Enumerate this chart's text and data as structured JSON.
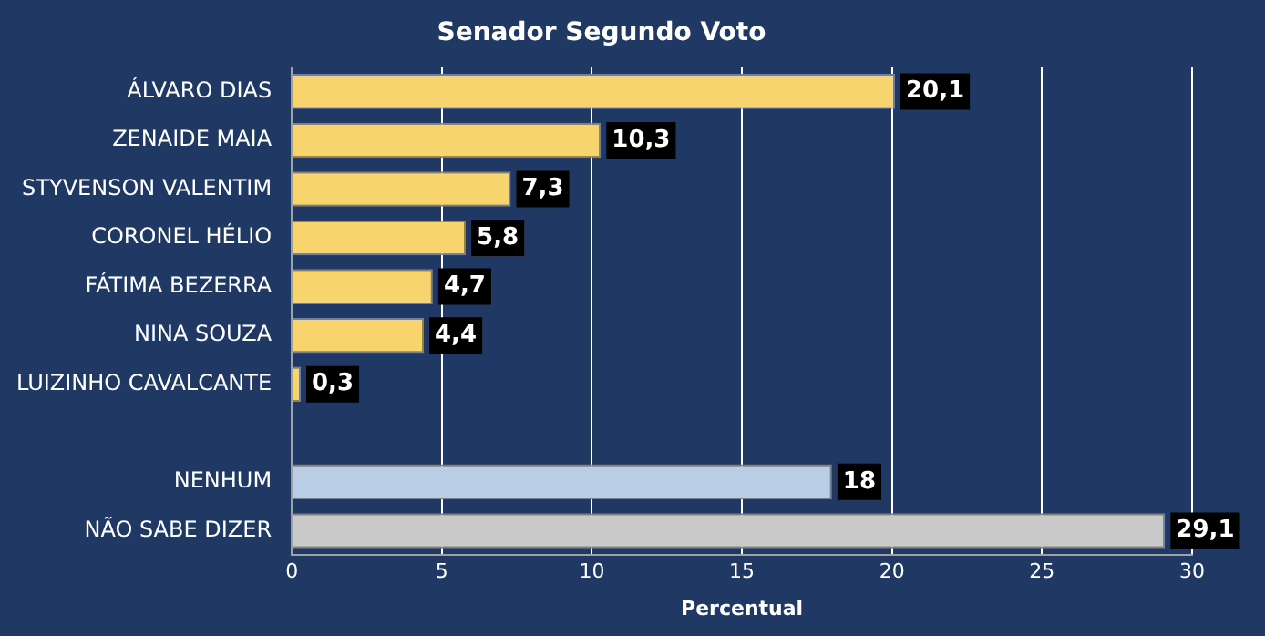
{
  "chart_data": {
    "type": "bar",
    "orientation": "horizontal",
    "title": "Senador Segundo Voto",
    "xlabel": "Percentual",
    "categories": [
      "ÁLVARO DIAS",
      "ZENAIDE MAIA",
      "STYVENSON VALENTIM",
      "CORONEL HÉLIO",
      "FÁTIMA BEZERRA",
      "NINA SOUZA",
      "LUIZINHO CAVALCANTE",
      null,
      "NENHUM",
      "NÃO SABE DIZER"
    ],
    "values": [
      20.1,
      10.3,
      7.3,
      5.8,
      4.7,
      4.4,
      0.3,
      null,
      18,
      29.1
    ],
    "value_labels": [
      "20,1",
      "10,3",
      "7,3",
      "5,8",
      "4,7",
      "4,4",
      "0,3",
      null,
      "18",
      "29,1"
    ],
    "colors": [
      "#f7d46e",
      "#f7d46e",
      "#f7d46e",
      "#f7d46e",
      "#f7d46e",
      "#f7d46e",
      "#f7d46e",
      null,
      "#b9cde5",
      "#c9c9c9"
    ],
    "xlim": [
      0,
      30
    ],
    "xticks": [
      0,
      5,
      10,
      15,
      20,
      25,
      30
    ],
    "grid": "x"
  }
}
